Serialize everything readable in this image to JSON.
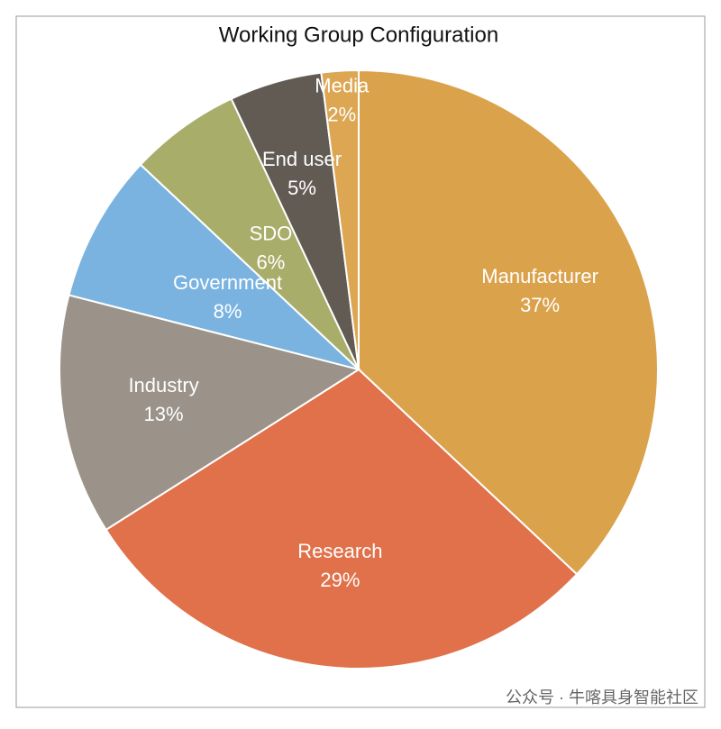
{
  "chart_data": {
    "type": "pie",
    "title": "Working Group Configuration",
    "categories": [
      "Manufacturer",
      "Research",
      "Industry",
      "Government",
      "SDO",
      "End user",
      "Media"
    ],
    "values": [
      37,
      29,
      13,
      8,
      6,
      5,
      2
    ],
    "value_labels": [
      "37%",
      "29%",
      "13%",
      "8%",
      "6%",
      "5%",
      "2%"
    ],
    "colors": [
      "#dba24c",
      "#e0714a",
      "#9b938a",
      "#7ab3e0",
      "#a9ad6a",
      "#625b53",
      "#dca653"
    ]
  },
  "watermark": "公众号 · 牛喀具身智能社区"
}
